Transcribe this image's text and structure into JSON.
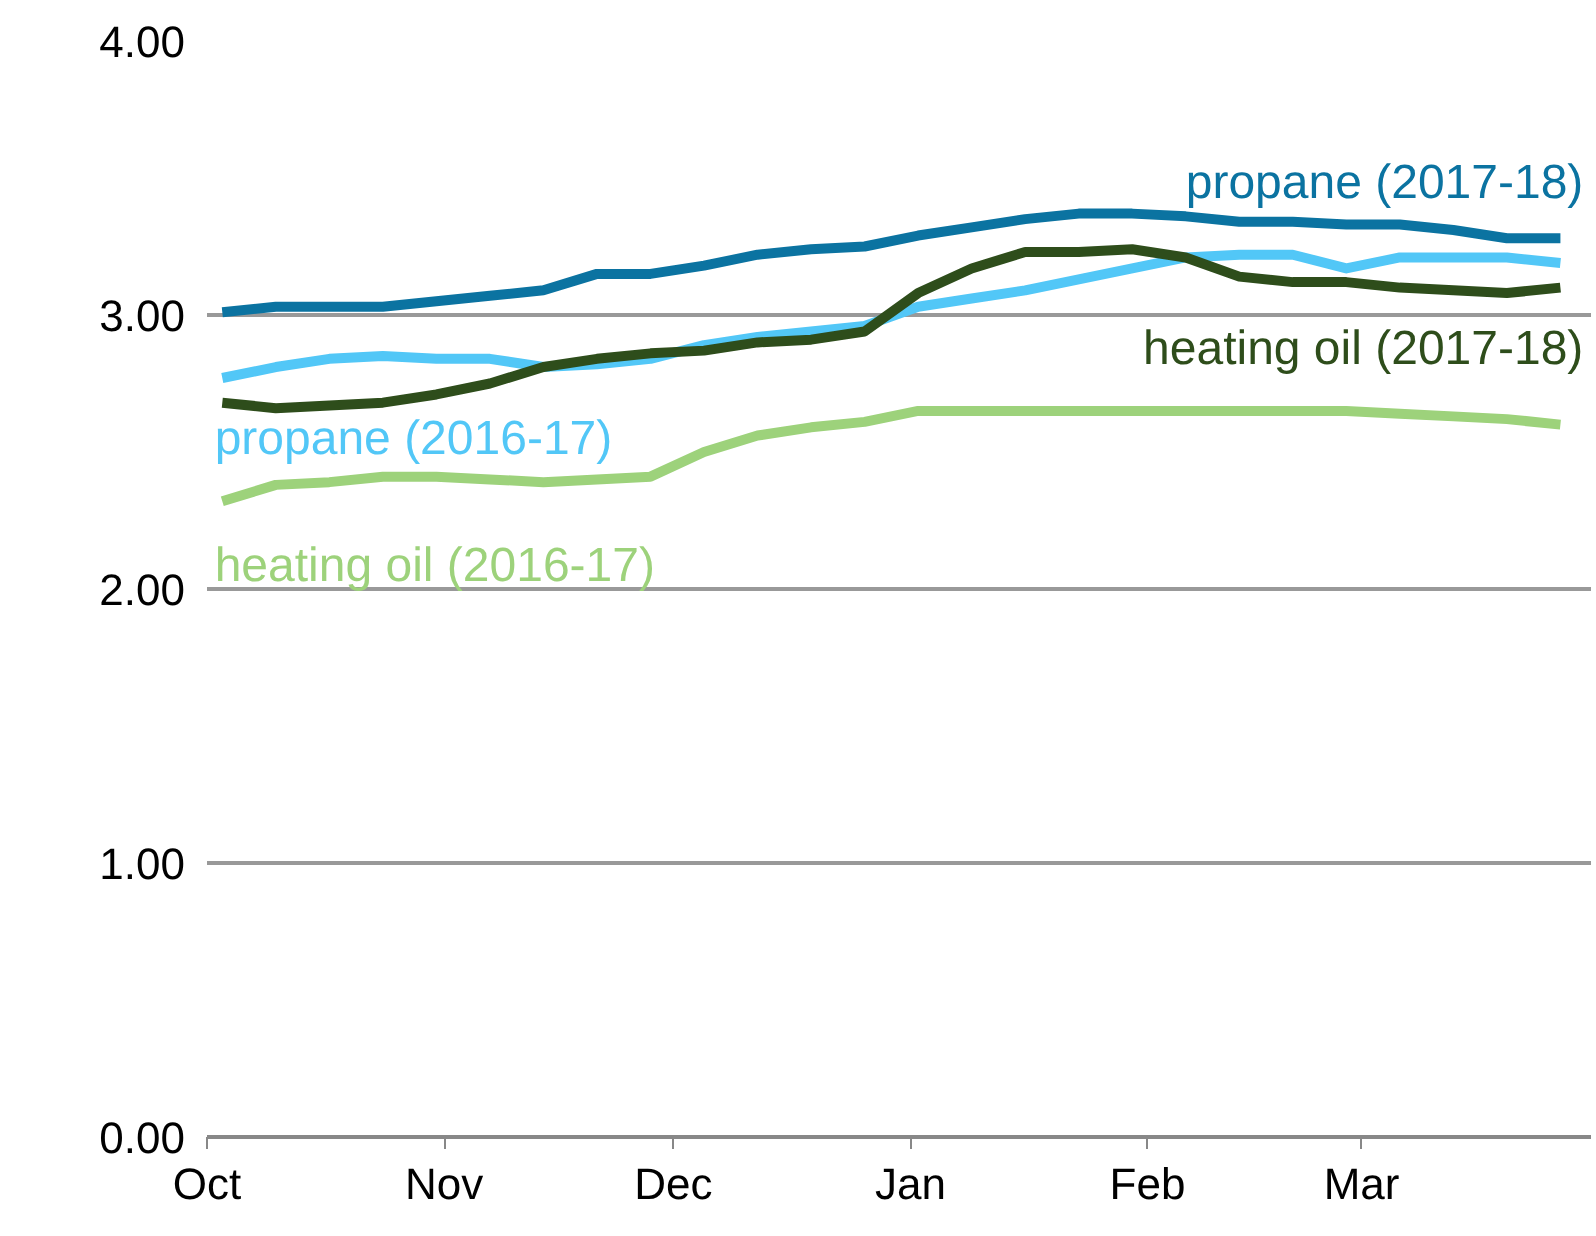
{
  "chart_data": {
    "type": "line",
    "x": [
      "2017-10-03",
      "2017-10-10",
      "2017-10-17",
      "2017-10-24",
      "2017-10-31",
      "2017-11-07",
      "2017-11-14",
      "2017-11-21",
      "2017-11-28",
      "2017-12-05",
      "2017-12-12",
      "2017-12-19",
      "2017-12-26",
      "2018-01-02",
      "2018-01-09",
      "2018-01-16",
      "2018-01-23",
      "2018-01-30",
      "2018-02-06",
      "2018-02-13",
      "2018-02-20",
      "2018-02-27",
      "2018-03-06",
      "2018-03-13",
      "2018-03-20",
      "2018-03-27"
    ],
    "xlim": [
      "2017-10-01",
      "2018-03-31"
    ],
    "xticks": [
      {
        "value": "2017-10-01",
        "label": "Oct"
      },
      {
        "value": "2017-11-01",
        "label": "Nov"
      },
      {
        "value": "2017-12-01",
        "label": "Dec"
      },
      {
        "value": "2018-01-01",
        "label": "Jan"
      },
      {
        "value": "2018-02-01",
        "label": "Feb"
      },
      {
        "value": "2018-03-01",
        "label": "Mar"
      }
    ],
    "ylim": [
      0,
      4
    ],
    "yticks": [
      {
        "value": 0,
        "label": "0.00"
      },
      {
        "value": 1,
        "label": "1.00"
      },
      {
        "value": 2,
        "label": "2.00"
      },
      {
        "value": 3,
        "label": "3.00"
      },
      {
        "value": 4,
        "label": "4.00"
      }
    ],
    "grid": "y",
    "legend": false,
    "marker": "none",
    "line_style": "solid",
    "series": [
      {
        "name": "propane (2017-18)",
        "color": "#0b73a1",
        "values": [
          3.01,
          3.03,
          3.03,
          3.03,
          3.05,
          3.07,
          3.09,
          3.15,
          3.15,
          3.18,
          3.22,
          3.24,
          3.25,
          3.29,
          3.32,
          3.35,
          3.37,
          3.37,
          3.36,
          3.34,
          3.34,
          3.33,
          3.33,
          3.31,
          3.28,
          3.28
        ]
      },
      {
        "name": "propane (2016-17)",
        "color": "#52c7f7",
        "values": [
          2.77,
          2.81,
          2.84,
          2.85,
          2.84,
          2.84,
          2.81,
          2.82,
          2.84,
          2.89,
          2.92,
          2.94,
          2.96,
          3.03,
          3.06,
          3.09,
          3.13,
          3.17,
          3.21,
          3.22,
          3.22,
          3.17,
          3.21,
          3.21,
          3.21,
          3.19
        ]
      },
      {
        "name": "heating oil (2017-18)",
        "color": "#2e4d1b",
        "values": [
          2.68,
          2.66,
          2.67,
          2.68,
          2.71,
          2.75,
          2.81,
          2.84,
          2.86,
          2.87,
          2.9,
          2.91,
          2.94,
          3.08,
          3.17,
          3.23,
          3.23,
          3.24,
          3.21,
          3.14,
          3.12,
          3.12,
          3.1,
          3.09,
          3.08,
          3.1
        ]
      },
      {
        "name": "heating oil (2016-17)",
        "color": "#9dd27b",
        "values": [
          2.32,
          2.38,
          2.39,
          2.41,
          2.41,
          2.4,
          2.39,
          2.4,
          2.41,
          2.5,
          2.56,
          2.59,
          2.61,
          2.65,
          2.65,
          2.65,
          2.65,
          2.65,
          2.65,
          2.65,
          2.65,
          2.65,
          2.64,
          2.63,
          2.62,
          2.6
        ]
      }
    ]
  }
}
